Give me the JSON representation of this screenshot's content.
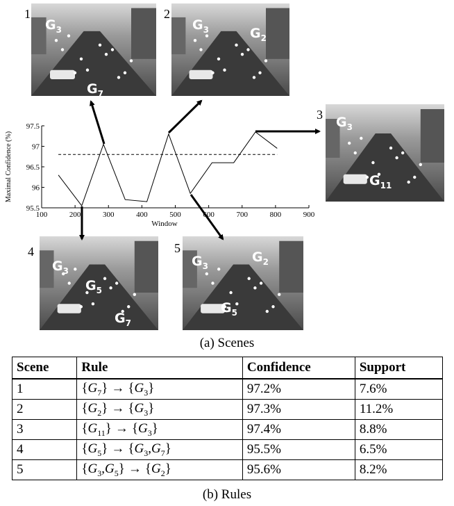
{
  "chart_data": {
    "type": "line",
    "xlabel": "Window",
    "ylabel": "Maximal Confidence (%)",
    "xlim": [
      100,
      900
    ],
    "xticks": [
      100,
      200,
      300,
      400,
      500,
      600,
      700,
      800,
      900
    ],
    "ylim": [
      95.5,
      97.5
    ],
    "yticks": [
      95.5,
      96,
      96.5,
      97,
      97.5
    ],
    "series": [
      {
        "color": "#000000",
        "style": "solid",
        "x": [
          150,
          220,
          285,
          350,
          415,
          480,
          545,
          610,
          675,
          740,
          805
        ],
        "values": [
          96.3,
          95.55,
          97.05,
          95.7,
          95.65,
          97.3,
          95.85,
          96.6,
          96.6,
          97.35,
          96.95
        ]
      },
      {
        "color": "#000000",
        "style": "dashed",
        "x": [
          150,
          805
        ],
        "values": [
          96.8,
          96.8
        ]
      }
    ]
  },
  "scenes": [
    {
      "number": "1",
      "groups": [
        {
          "base": "G",
          "sub": "3"
        },
        {
          "base": "G",
          "sub": "7"
        }
      ]
    },
    {
      "number": "2",
      "groups": [
        {
          "base": "G",
          "sub": "3"
        },
        {
          "base": "G",
          "sub": "2"
        }
      ]
    },
    {
      "number": "3",
      "groups": [
        {
          "base": "G",
          "sub": "3"
        },
        {
          "base": "G",
          "sub": "11"
        }
      ]
    },
    {
      "number": "4",
      "groups": [
        {
          "base": "G",
          "sub": "3"
        },
        {
          "base": "G",
          "sub": "5"
        },
        {
          "base": "G",
          "sub": "7"
        }
      ]
    },
    {
      "number": "5",
      "groups": [
        {
          "base": "G",
          "sub": "3"
        },
        {
          "base": "G",
          "sub": "2"
        },
        {
          "base": "G",
          "sub": "5"
        }
      ]
    }
  ],
  "captions": {
    "a": "(a) Scenes",
    "b": "(b) Rules"
  },
  "symbols": {
    "open": "{",
    "close": "}",
    "arrow": "→",
    "sep": ","
  },
  "table": {
    "header": [
      "Scene",
      "Rule",
      "Confidence",
      "Support"
    ],
    "rows": [
      {
        "scene": "1",
        "antecedent": [
          {
            "base": "G",
            "sub": "7"
          }
        ],
        "consequent": [
          {
            "base": "G",
            "sub": "3"
          }
        ],
        "confidence": "97.2%",
        "support": "7.6%"
      },
      {
        "scene": "2",
        "antecedent": [
          {
            "base": "G",
            "sub": "2"
          }
        ],
        "consequent": [
          {
            "base": "G",
            "sub": "3"
          }
        ],
        "confidence": "97.3%",
        "support": "11.2%"
      },
      {
        "scene": "3",
        "antecedent": [
          {
            "base": "G",
            "sub": "11"
          }
        ],
        "consequent": [
          {
            "base": "G",
            "sub": "3"
          }
        ],
        "confidence": "97.4%",
        "support": "8.8%"
      },
      {
        "scene": "4",
        "antecedent": [
          {
            "base": "G",
            "sub": "5"
          }
        ],
        "consequent": [
          {
            "base": "G",
            "sub": "3"
          },
          {
            "base": "G",
            "sub": "7"
          }
        ],
        "confidence": "95.5%",
        "support": "6.5%"
      },
      {
        "scene": "5",
        "antecedent": [
          {
            "base": "G",
            "sub": "3"
          },
          {
            "base": "G",
            "sub": "5"
          }
        ],
        "consequent": [
          {
            "base": "G",
            "sub": "2"
          }
        ],
        "confidence": "95.6%",
        "support": "8.2%"
      }
    ]
  }
}
